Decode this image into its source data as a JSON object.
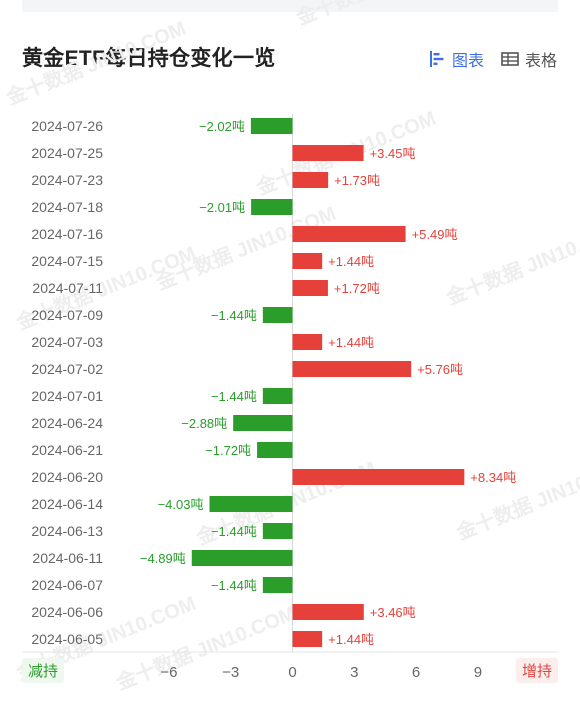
{
  "title": "黄金ETF每日持仓变化一览",
  "view_toggle": {
    "chart_label": "图表",
    "table_label": "表格",
    "chart_icon": "bar-chart-icon",
    "table_icon": "table-icon"
  },
  "legend": {
    "decrease_label": "减持",
    "increase_label": "增持"
  },
  "colors": {
    "increase": "#e5413a",
    "decrease": "#2a9d2a",
    "accent": "#3f6fe8"
  },
  "watermark": "金十数据 JIN10.COM",
  "chart_data": {
    "type": "bar",
    "orientation": "horizontal",
    "unit": "吨",
    "categories": [
      "2024-07-26",
      "2024-07-25",
      "2024-07-23",
      "2024-07-18",
      "2024-07-16",
      "2024-07-15",
      "2024-07-11",
      "2024-07-09",
      "2024-07-03",
      "2024-07-02",
      "2024-07-01",
      "2024-06-24",
      "2024-06-21",
      "2024-06-20",
      "2024-06-14",
      "2024-06-13",
      "2024-06-11",
      "2024-06-07",
      "2024-06-06",
      "2024-06-05"
    ],
    "values": [
      -2.02,
      3.45,
      1.73,
      -2.01,
      5.49,
      1.44,
      1.72,
      -1.44,
      1.44,
      5.76,
      -1.44,
      -2.88,
      -1.72,
      8.34,
      -4.03,
      -1.44,
      -4.89,
      -1.44,
      3.46,
      1.44
    ],
    "labels": [
      "−2.02吨",
      "+3.45吨",
      "+1.73吨",
      "−2.01吨",
      "+5.49吨",
      "+1.44吨",
      "+1.72吨",
      "−1.44吨",
      "+1.44吨",
      "+5.76吨",
      "−1.44吨",
      "−2.88吨",
      "−1.72吨",
      "+8.34吨",
      "−4.03吨",
      "−1.44吨",
      "−4.89吨",
      "−1.44吨",
      "+3.46吨",
      "+1.44吨"
    ],
    "xticks": [
      -6,
      -3,
      0,
      3,
      6,
      9
    ],
    "xtick_labels": [
      "−6",
      "−3",
      "0",
      "3",
      "6",
      "9"
    ],
    "xlim": [
      -6,
      9
    ],
    "grid": false
  }
}
